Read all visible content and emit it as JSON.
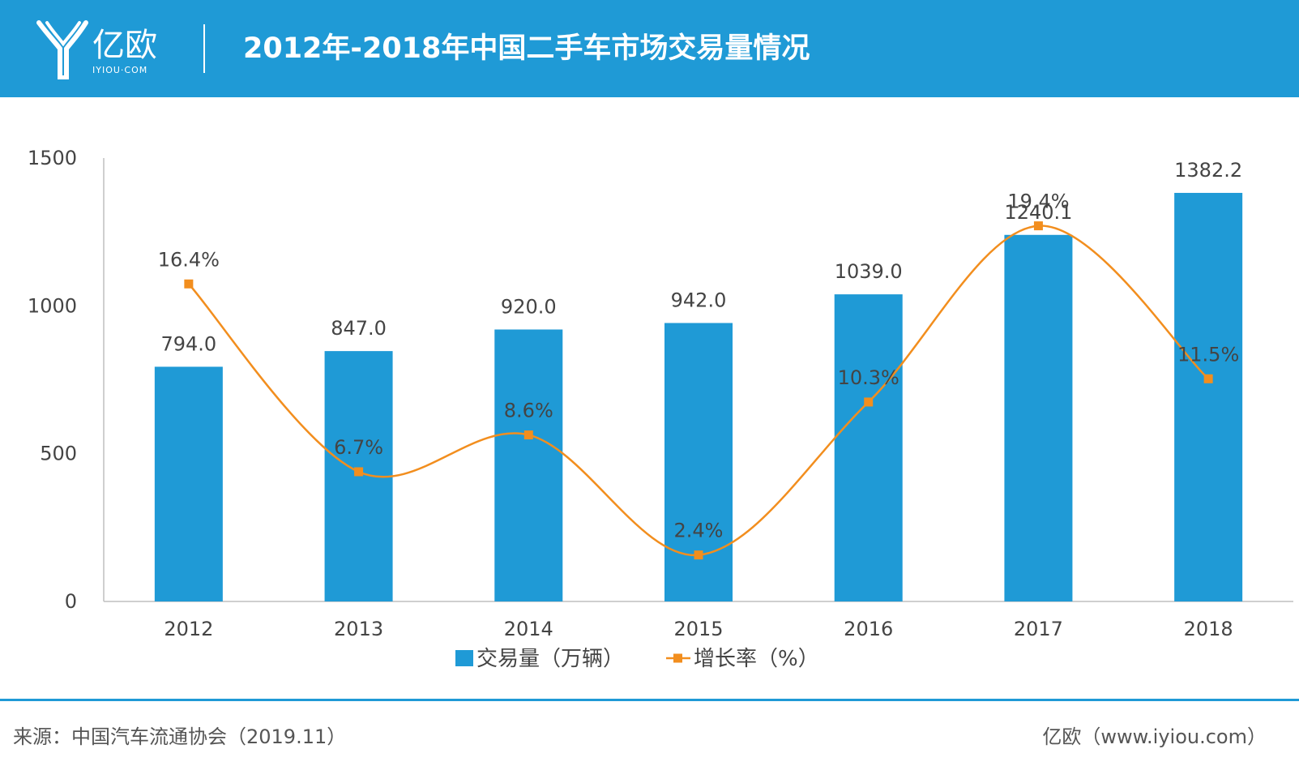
{
  "header": {
    "logo_text": "亿欧",
    "logo_sub": "IYIOU·COM",
    "title": "2012年-2018年中国二手车市场交易量情况"
  },
  "colors": {
    "header_bg": "#1f9ad6",
    "bar": "#1f9ad6",
    "line": "#f28e1e",
    "text": "#444444"
  },
  "chart_data": {
    "type": "bar",
    "categories": [
      "2012",
      "2013",
      "2014",
      "2015",
      "2016",
      "2017",
      "2018"
    ],
    "series": [
      {
        "name": "交易量（万辆）",
        "type": "bar",
        "values": [
          794.0,
          847.0,
          920.0,
          942.0,
          1039.0,
          1240.1,
          1382.2
        ],
        "labels": [
          "794.0",
          "847.0",
          "920.0",
          "942.0",
          "1039.0",
          "1240.1",
          "1382.2"
        ]
      },
      {
        "name": "增长率（%）",
        "type": "line",
        "values": [
          16.4,
          6.7,
          8.6,
          2.4,
          10.3,
          19.4,
          11.5
        ],
        "labels": [
          "16.4%",
          "6.7%",
          "8.6%",
          "2.4%",
          "10.3%",
          "19.4%",
          "11.5%"
        ]
      }
    ],
    "y_ticks": [
      "0",
      "500",
      "1000",
      "1500"
    ],
    "ylim": [
      0,
      1500
    ],
    "y2lim": [
      0,
      22.9
    ],
    "grid": false,
    "legend": "bottom-center"
  },
  "footer": {
    "source": "来源：中国汽车流通协会（2019.11）",
    "brand": "亿欧（www.iyiou.com）"
  }
}
